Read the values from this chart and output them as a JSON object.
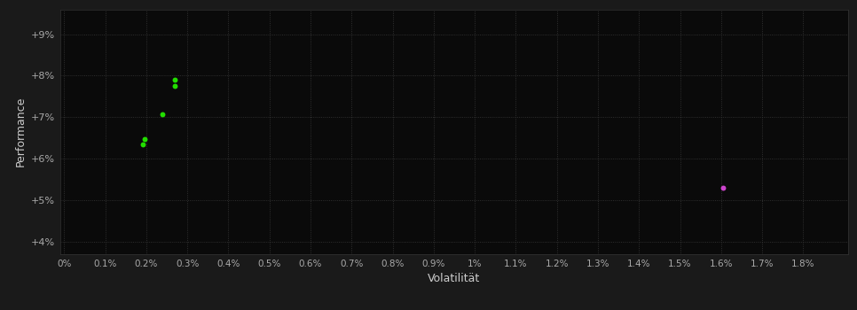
{
  "background_color": "#1a1a1a",
  "plot_bg_color": "#0a0a0a",
  "xlabel": "Volatilität",
  "ylabel": "Performance",
  "label_color": "#cccccc",
  "tick_color": "#aaaaaa",
  "xtick_vals": [
    0.0,
    0.001,
    0.002,
    0.003,
    0.004,
    0.005,
    0.006,
    0.007,
    0.008,
    0.009,
    0.01,
    0.011,
    0.012,
    0.013,
    0.014,
    0.015,
    0.016,
    0.017,
    0.018
  ],
  "xtick_labels": [
    "0%",
    "0.1%",
    "0.2%",
    "0.3%",
    "0.4%",
    "0.5%",
    "0.6%",
    "0.7%",
    "0.8%",
    "0.9%",
    "1%",
    "1.1%",
    "1.2%",
    "1.3%",
    "1.4%",
    "1.5%",
    "1.6%",
    "1.7%",
    "1.8%"
  ],
  "ytick_vals": [
    0.04,
    0.05,
    0.06,
    0.07,
    0.08,
    0.09
  ],
  "ytick_labels": [
    "+4%",
    "+5%",
    "+6%",
    "+7%",
    "+8%",
    "+9%"
  ],
  "xlim": [
    -0.0001,
    0.0191
  ],
  "ylim": [
    0.037,
    0.096
  ],
  "green_points": [
    [
      0.0027,
      0.079
    ],
    [
      0.0027,
      0.0775
    ],
    [
      0.0024,
      0.0707
    ],
    [
      0.00195,
      0.0648
    ],
    [
      0.00192,
      0.0635
    ]
  ],
  "magenta_points": [
    [
      0.01605,
      0.053
    ]
  ],
  "green_color": "#22dd00",
  "magenta_color": "#cc44cc",
  "point_size": 18
}
